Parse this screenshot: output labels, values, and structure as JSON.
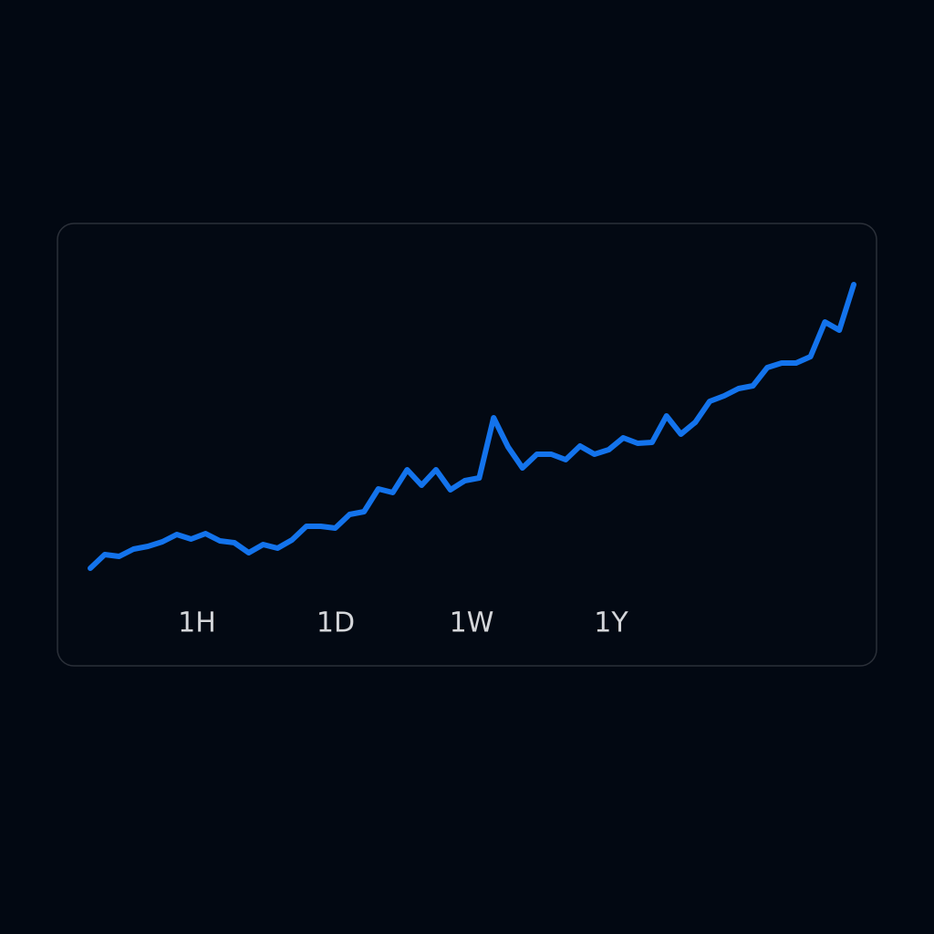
{
  "chart_data": {
    "type": "line",
    "color": "#1373ec",
    "values": [
      77,
      92,
      90,
      98,
      101,
      106,
      114,
      109,
      115,
      107,
      105,
      94,
      103,
      99,
      108,
      123,
      123,
      121,
      136,
      139,
      164,
      160,
      185,
      168,
      185,
      163,
      173,
      176,
      242,
      210,
      187,
      202,
      202,
      196,
      211,
      202,
      207,
      220,
      214,
      215,
      244,
      224,
      237,
      260,
      266,
      274,
      277,
      297,
      302,
      302,
      309,
      347,
      338,
      388
    ],
    "ylim": [
      0,
      400
    ]
  },
  "buttons": [
    "1H",
    "1D",
    "1W",
    "1Y"
  ]
}
